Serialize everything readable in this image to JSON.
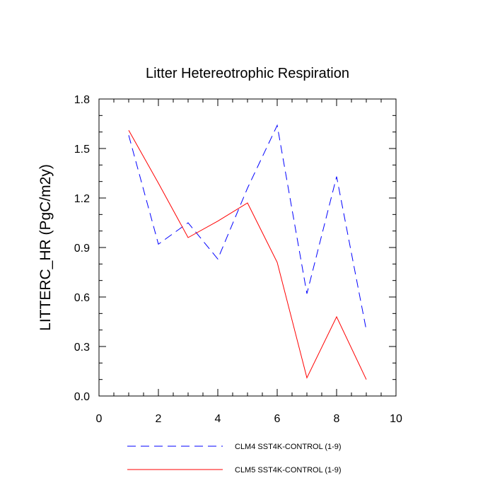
{
  "chart_data": {
    "type": "line",
    "title": "Litter Hetereotrophic Respiration",
    "xlabel": "",
    "ylabel": "LITTERC_HR  (PgC/m2y)",
    "xlim": [
      0,
      10
    ],
    "ylim": [
      0,
      1.8
    ],
    "xticks": [
      0,
      2,
      4,
      6,
      8,
      10
    ],
    "xtick_labels": [
      "0",
      "2",
      "4",
      "6",
      "8",
      "10"
    ],
    "yticks": [
      0,
      0.3,
      0.6,
      0.9,
      1.2,
      1.5,
      1.8
    ],
    "ytick_labels": [
      "0.0",
      "0.3",
      "0.6",
      "0.9",
      "1.2",
      "1.5",
      "1.8"
    ],
    "grid": false,
    "legend_position": "bottom",
    "series": [
      {
        "name": "CLM4 SST4K-CONTROL (1-9)",
        "color": "#0000ff",
        "dash": "dashed",
        "x": [
          1,
          2,
          3,
          4,
          5,
          6,
          7,
          8,
          9
        ],
        "y": [
          1.58,
          0.92,
          1.05,
          0.83,
          1.26,
          1.64,
          0.62,
          1.33,
          0.4
        ]
      },
      {
        "name": "CLM5 SST4K-CONTROL (1-9)",
        "color": "#ff0000",
        "dash": "solid",
        "x": [
          1,
          2,
          3,
          4,
          5,
          6,
          7,
          8,
          9
        ],
        "y": [
          1.61,
          1.29,
          0.96,
          1.06,
          1.17,
          0.81,
          0.11,
          0.48,
          0.1
        ]
      }
    ]
  }
}
